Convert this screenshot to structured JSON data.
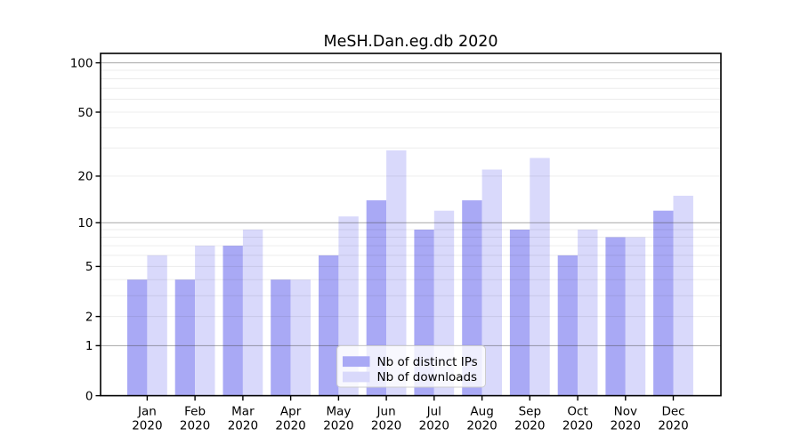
{
  "chart_data": {
    "type": "bar",
    "title": "MeSH.Dan.eg.db 2020",
    "categories": [
      "Jan",
      "Feb",
      "Mar",
      "Apr",
      "May",
      "Jun",
      "Jul",
      "Aug",
      "Sep",
      "Oct",
      "Nov",
      "Dec"
    ],
    "category_year": "2020",
    "series": [
      {
        "name": "Nb of distinct IPs",
        "color": "#a9a9f5",
        "values": [
          4,
          4,
          7,
          4,
          6,
          14,
          9,
          14,
          9,
          6,
          8,
          12
        ]
      },
      {
        "name": "Nb of downloads",
        "color": "#d9d9fb",
        "values": [
          6,
          7,
          9,
          4,
          11,
          29,
          12,
          22,
          26,
          9,
          8,
          15
        ]
      }
    ],
    "y_scale": "log1p",
    "y_ticks": [
      0,
      1,
      2,
      5,
      10,
      20,
      50,
      100
    ],
    "y_major_gridlines": [
      1,
      10,
      100
    ],
    "y_minor_gridlines": [
      2,
      3,
      4,
      5,
      6,
      7,
      8,
      9,
      20,
      30,
      40,
      50,
      60,
      70,
      80,
      90
    ],
    "ylim": [
      0,
      114
    ],
    "grid": true,
    "legend_position": "bottom-center",
    "colors": {
      "axis": "#000000",
      "major_grid": "#b1b1b1",
      "minor_grid": "#ececec",
      "background": "#ffffff",
      "legend_border": "#cccccc",
      "legend_background": "#ffffff"
    }
  }
}
